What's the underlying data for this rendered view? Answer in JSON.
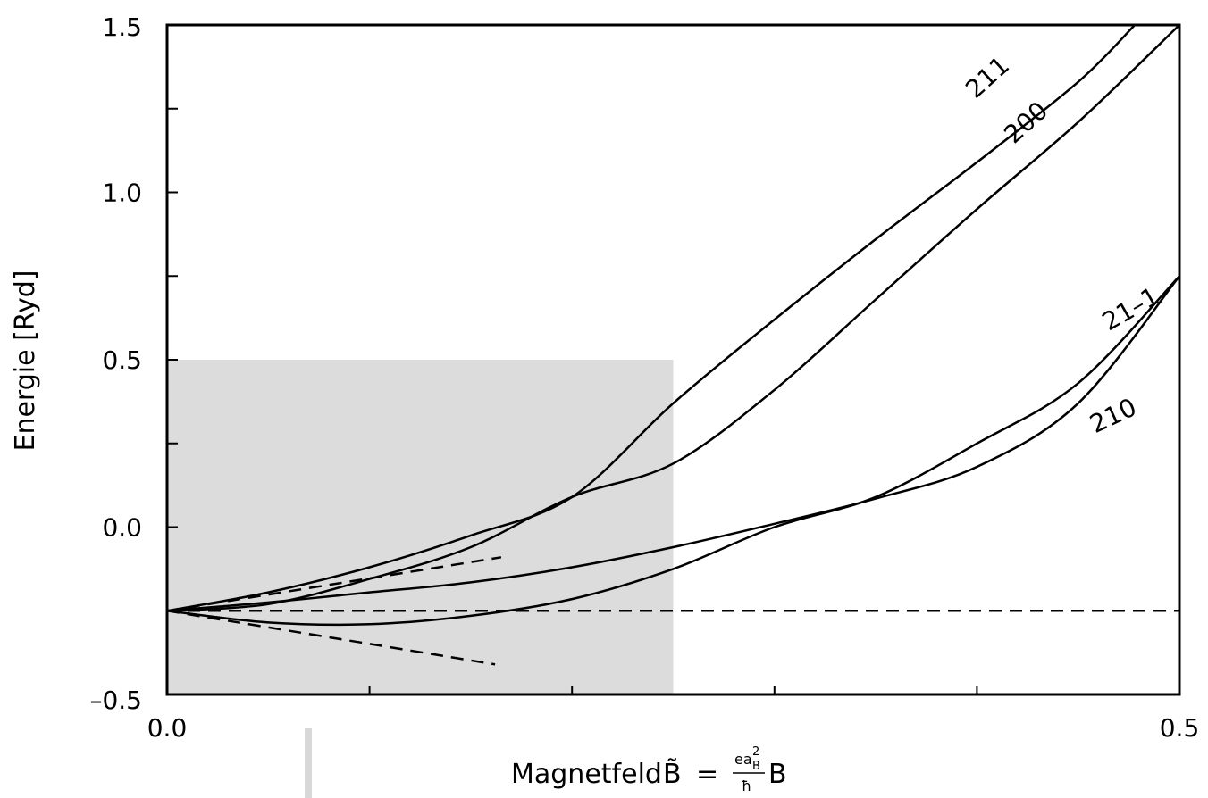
{
  "chart_data": {
    "type": "line",
    "title": "",
    "xlabel": "Magnetfeld",
    "xlabel_symbol": "B̃",
    "xlabel_eq": "=",
    "xlabel_num": "ea",
    "xlabel_sup": "2",
    "xlabel_sub": "B",
    "xlabel_den": "ħ",
    "xlabel_tail": "B",
    "ylabel": "Energie [Ryd]",
    "xlim": [
      0.0,
      0.5
    ],
    "ylim": [
      -0.5,
      1.5
    ],
    "x_tick_labels": [
      {
        "value": 0.0,
        "label": "0.0"
      },
      {
        "value": 0.5,
        "label": "0.5"
      }
    ],
    "y_tick_labels": [
      {
        "value": -0.5,
        "label": "–0.5"
      },
      {
        "value": 0.0,
        "label": "0.0"
      },
      {
        "value": 0.5,
        "label": "0.5"
      },
      {
        "value": 1.0,
        "label": "1.0"
      },
      {
        "value": 1.5,
        "label": "1.5"
      }
    ],
    "x_ticks": [
      0.0,
      0.1,
      0.2,
      0.3,
      0.4,
      0.5
    ],
    "y_ticks": [
      -0.5,
      -0.25,
      0.0,
      0.25,
      0.5,
      0.75,
      1.0,
      1.25,
      1.5
    ],
    "shaded_region": {
      "x": [
        0.0,
        0.25
      ],
      "y": [
        -0.5,
        0.5
      ],
      "color": "#dcdcdc"
    },
    "series": [
      {
        "name": "211",
        "style": "solid",
        "x": [
          0,
          0.05,
          0.1,
          0.15,
          0.2,
          0.25,
          0.3,
          0.35,
          0.4,
          0.45,
          0.478
        ],
        "y": [
          -0.25,
          -0.195,
          -0.12,
          -0.025,
          0.09,
          0.37,
          0.62,
          0.86,
          1.09,
          1.33,
          1.5
        ],
        "label_at": [
          0.408,
          1.325
        ],
        "label_rot": -42
      },
      {
        "name": "200",
        "style": "solid",
        "x": [
          0,
          0.05,
          0.1,
          0.15,
          0.2,
          0.25,
          0.3,
          0.35,
          0.4,
          0.45,
          0.5
        ],
        "y": [
          -0.25,
          -0.23,
          -0.155,
          -0.06,
          0.09,
          0.19,
          0.41,
          0.68,
          0.95,
          1.21,
          1.5
        ],
        "label_at": [
          0.427,
          1.19
        ],
        "label_rot": -42
      },
      {
        "name": "21–1",
        "style": "solid",
        "x": [
          0,
          0.05,
          0.1,
          0.15,
          0.2,
          0.25,
          0.3,
          0.35,
          0.4,
          0.45,
          0.5
        ],
        "y": [
          -0.25,
          -0.225,
          -0.195,
          -0.165,
          -0.12,
          -0.06,
          0.01,
          0.085,
          0.18,
          0.37,
          0.75
        ],
        "label_at": [
          0.478,
          0.63
        ],
        "label_rot": -30
      },
      {
        "name": "210",
        "style": "solid",
        "x": [
          0,
          0.05,
          0.1,
          0.15,
          0.2,
          0.25,
          0.3,
          0.35,
          0.4,
          0.45,
          0.5
        ],
        "y": [
          -0.25,
          -0.285,
          -0.29,
          -0.265,
          -0.215,
          -0.125,
          0.0,
          0.09,
          0.25,
          0.43,
          0.75
        ],
        "label_at": [
          0.469,
          0.31
        ],
        "label_rot": -25
      },
      {
        "name": "",
        "style": "dashed",
        "x": [
          0,
          0.165
        ],
        "y": [
          -0.25,
          -0.09
        ]
      },
      {
        "name": "",
        "style": "dashed",
        "x": [
          0,
          0.5
        ],
        "y": [
          -0.25,
          -0.25
        ]
      },
      {
        "name": "",
        "style": "dashed",
        "x": [
          0,
          0.162
        ],
        "y": [
          -0.25,
          -0.41
        ]
      }
    ]
  }
}
